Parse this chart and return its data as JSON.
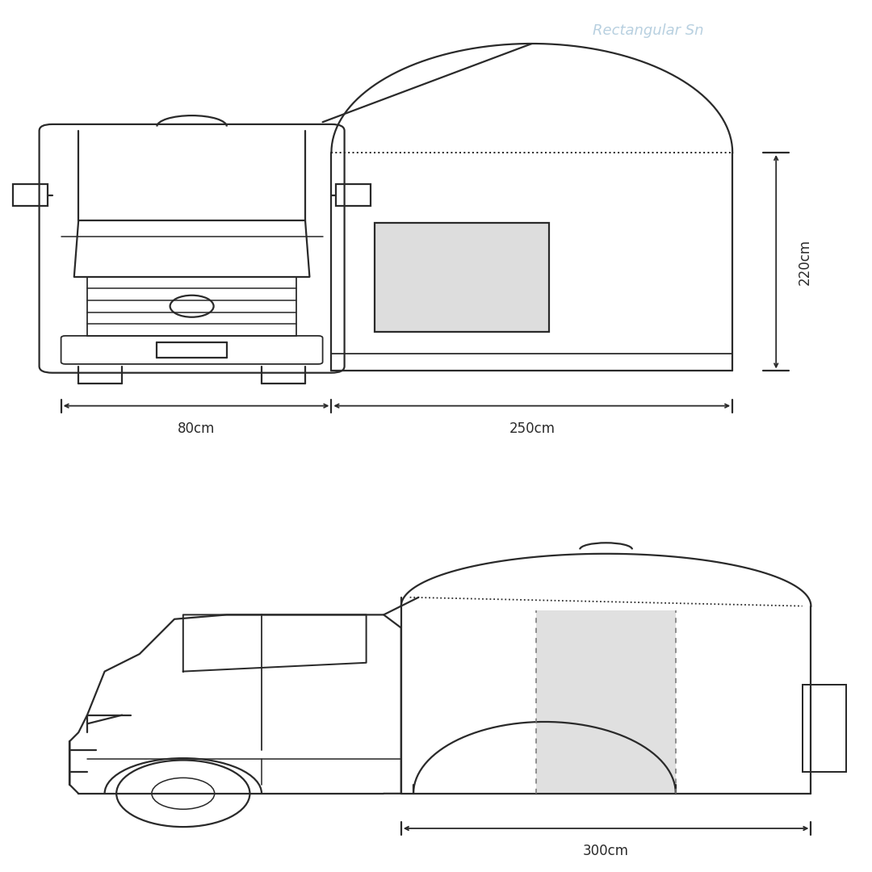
{
  "background_color": "#ffffff",
  "line_color": "#2a2a2a",
  "line_width": 1.6,
  "watermark_color": "#b8d0e0",
  "watermark_text": "Rectangular Sn",
  "label_80": "80cm",
  "label_250": "250cm",
  "label_220": "220cm",
  "label_300": "300cm",
  "font_size": 12,
  "font_size_wm": 13
}
